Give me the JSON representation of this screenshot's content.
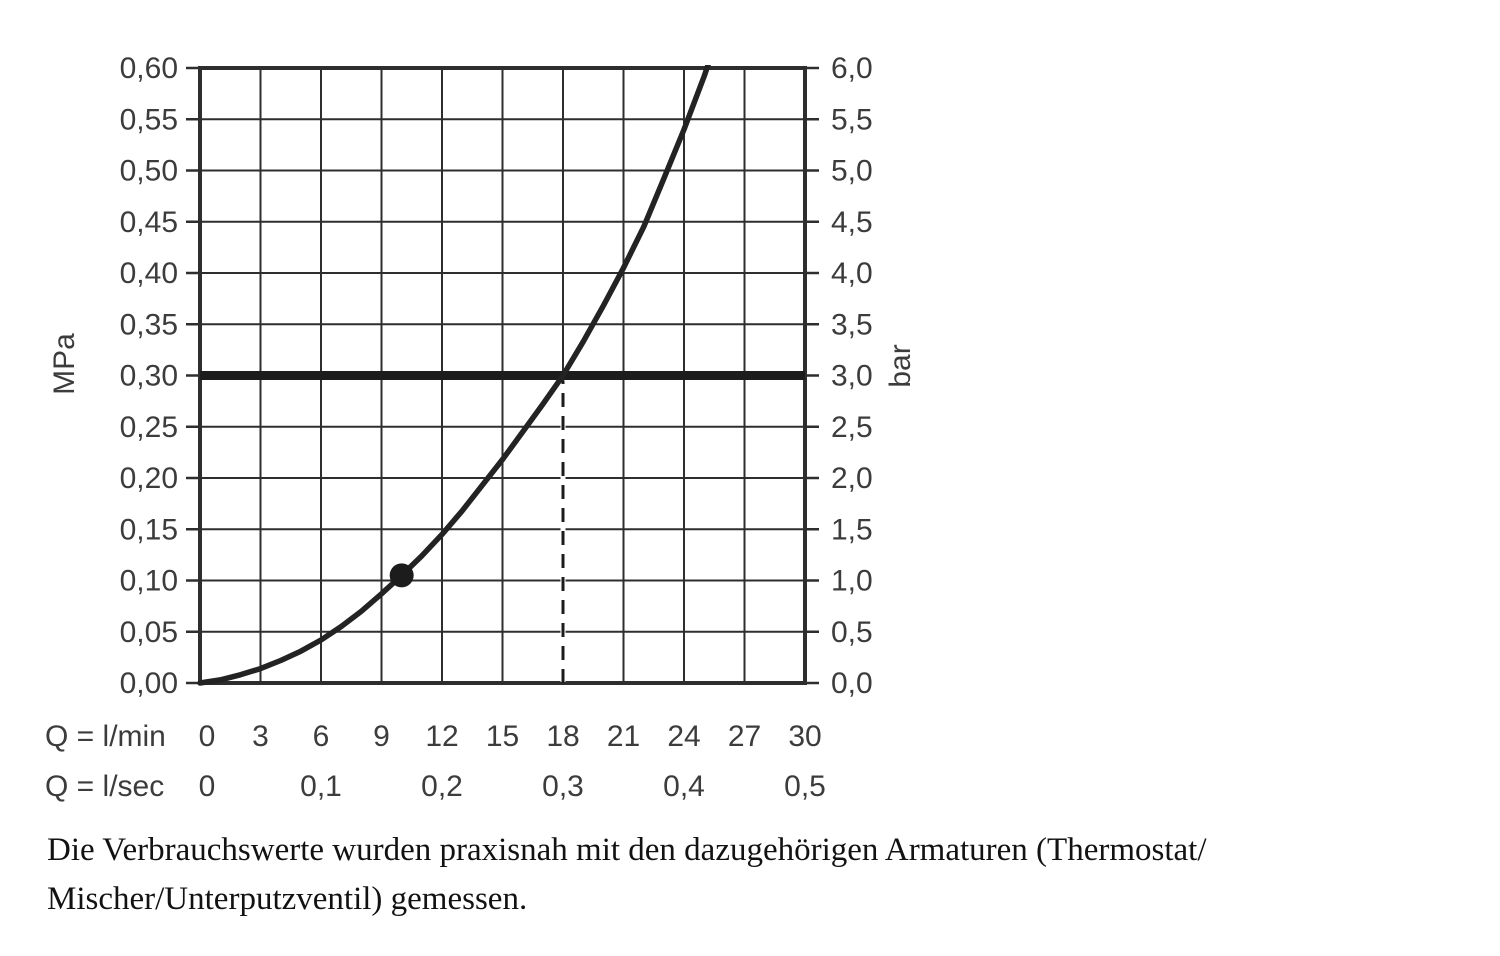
{
  "chart_data": {
    "type": "line",
    "title": "",
    "grid": true,
    "x_axis": {
      "row1_label": "Q = l/min",
      "row2_label": "Q = l/sec",
      "range": [
        0,
        30
      ],
      "lmin_tick_values": [
        0,
        3,
        6,
        9,
        12,
        15,
        18,
        21,
        24,
        27,
        30
      ],
      "lmin_tick_labels": [
        "0",
        "3",
        "6",
        "9",
        "12",
        "15",
        "18",
        "21",
        "24",
        "27",
        "30"
      ],
      "lsec_tick_values": [
        0,
        6,
        12,
        18,
        24,
        30
      ],
      "lsec_tick_labels": [
        "0",
        "0,1",
        "0,2",
        "0,3",
        "0,4",
        "0,5"
      ]
    },
    "y_axis_left": {
      "label": "MPa",
      "range": [
        0,
        0.6
      ],
      "tick_values": [
        0.6,
        0.55,
        0.5,
        0.45,
        0.4,
        0.35,
        0.3,
        0.25,
        0.2,
        0.15,
        0.1,
        0.05,
        0.0
      ],
      "tick_labels": [
        "0,60",
        "0,55",
        "0,50",
        "0,45",
        "0,40",
        "0,35",
        "0,30",
        "0,25",
        "0,20",
        "0,15",
        "0,10",
        "0,05",
        "0,00"
      ]
    },
    "y_axis_right": {
      "label": "bar",
      "tick_values": [
        0.6,
        0.55,
        0.5,
        0.45,
        0.4,
        0.35,
        0.3,
        0.25,
        0.2,
        0.15,
        0.1,
        0.05,
        0.0
      ],
      "tick_labels": [
        "6,0",
        "5,5",
        "5,0",
        "4,5",
        "4,0",
        "3,5",
        "3,0",
        "2,5",
        "2,0",
        "1,5",
        "1,0",
        "0,5",
        "0,0"
      ]
    },
    "series": [
      {
        "name": "pressure-loss-curve",
        "x_lmin": [
          0,
          1,
          2,
          3,
          4,
          5,
          6,
          7,
          8,
          9,
          10,
          11,
          12,
          13,
          14,
          15,
          16,
          17,
          18,
          19,
          20,
          21,
          22,
          23,
          24,
          25,
          25.35
        ],
        "y_mpa": [
          0,
          0.003,
          0.008,
          0.014,
          0.022,
          0.031,
          0.042,
          0.055,
          0.07,
          0.087,
          0.105,
          0.124,
          0.145,
          0.168,
          0.193,
          0.218,
          0.245,
          0.272,
          0.3,
          0.333,
          0.368,
          0.405,
          0.445,
          0.492,
          0.54,
          0.592,
          0.612
        ]
      }
    ],
    "reference_line_mpa": 0.3,
    "reference_line_bar": 3.0,
    "dashed_guide_lmin": 18,
    "marker_point": {
      "x_lmin": 10,
      "y_mpa": 0.105
    }
  },
  "caption": {
    "line1": "Die Verbrauchswerte wurden praxisnah mit den dazugehörigen Armaturen (Thermostat/",
    "line2": "Mischer/Unterputzventil) gemessen."
  },
  "colors": {
    "grid_ink": "#2e2e2e",
    "curve_ink": "#232323",
    "heavy_ink": "#1c1c1c",
    "label_text": "#3c3c3c",
    "caption_text": "#121212",
    "background": "#ffffff"
  }
}
